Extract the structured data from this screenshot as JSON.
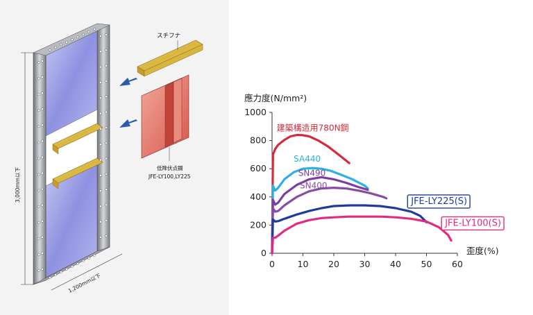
{
  "illustration": {
    "stiffener_label": "スチフナ",
    "steel_label_line1": "低降伏点鋼",
    "steel_label_line2": "JFE-LY100,LY225",
    "height_dim": "3,000mm以下",
    "width_dim": "1,200mm以下",
    "colors": {
      "panel": "#8c8fe0",
      "frame": "#8a8f94",
      "stiffener": "#e2c24a",
      "core": "#e06a5c",
      "arrow": "#2a5caa"
    }
  },
  "chart_data": {
    "type": "line",
    "ylabel": "應力度(N/mm²)",
    "xlabel": "歪度(%)",
    "xlim": [
      0,
      60
    ],
    "ylim": [
      0,
      1000
    ],
    "xticks": [
      0,
      10,
      20,
      30,
      40,
      50,
      60
    ],
    "yticks": [
      0,
      200,
      400,
      600,
      800,
      1000
    ],
    "grid": false,
    "series": [
      {
        "name": "建築構造用780N鋼",
        "color": "#d42a3a",
        "x": [
          0,
          0.3,
          1,
          2,
          4,
          6,
          8,
          10,
          12,
          15,
          18,
          21,
          25
        ],
        "y": [
          0,
          700,
          740,
          770,
          805,
          830,
          840,
          838,
          830,
          800,
          760,
          710,
          640
        ]
      },
      {
        "name": "SA440",
        "color": "#2ab0e4",
        "x": [
          0,
          0.3,
          1,
          2,
          4,
          7,
          10,
          13,
          16,
          19,
          22,
          26,
          30,
          31
        ],
        "y": [
          0,
          480,
          445,
          465,
          525,
          575,
          600,
          605,
          600,
          585,
          560,
          525,
          480,
          460
        ]
      },
      {
        "name": "SN490",
        "color": "#7a3e9e",
        "x": [
          0,
          0.3,
          1,
          2,
          4,
          8,
          12,
          16,
          20,
          24,
          28,
          31
        ],
        "y": [
          0,
          380,
          345,
          360,
          420,
          485,
          525,
          540,
          525,
          500,
          470,
          450
        ]
      },
      {
        "name": "SN400",
        "color": "#8a4aa8",
        "x": [
          0,
          0.3,
          1,
          2,
          4,
          8,
          12,
          16,
          20,
          24,
          28,
          32,
          36,
          37
        ],
        "y": [
          0,
          320,
          295,
          300,
          340,
          400,
          440,
          460,
          465,
          460,
          445,
          425,
          400,
          390
        ]
      },
      {
        "name": "JFE-LY225(S)",
        "color": "#1f3c9a",
        "x": [
          0,
          0.3,
          1,
          2,
          4,
          8,
          12,
          16,
          20,
          25,
          30,
          35,
          40,
          45,
          48,
          50
        ],
        "y": [
          0,
          240,
          225,
          228,
          245,
          275,
          300,
          320,
          335,
          340,
          340,
          335,
          320,
          295,
          265,
          220
        ]
      },
      {
        "name": "JFE-LY100(S)",
        "color": "#e42a7e",
        "x": [
          0,
          0.3,
          1,
          2,
          4,
          8,
          12,
          16,
          20,
          25,
          30,
          35,
          40,
          45,
          50,
          54,
          57,
          58
        ],
        "y": [
          0,
          110,
          110,
          125,
          160,
          210,
          235,
          250,
          255,
          260,
          260,
          260,
          255,
          245,
          225,
          185,
          130,
          90
        ]
      }
    ],
    "labels": [
      {
        "text": "建築構造用780N鋼",
        "color": "#d42a3a",
        "boxed": false,
        "x": 1.5,
        "y": 870
      },
      {
        "text": "SA440",
        "color": "#2ab0e4",
        "boxed": false,
        "x": 7,
        "y": 650
      },
      {
        "text": "SN490",
        "color": "#7a3e9e",
        "boxed": false,
        "x": 8.5,
        "y": 550
      },
      {
        "text": "SN400",
        "color": "#8a4aa8",
        "boxed": false,
        "x": 9,
        "y": 460
      },
      {
        "text": "JFE-LY225(S)",
        "color": "#1f3c9a",
        "boxed": true,
        "x": 45,
        "y": 350
      },
      {
        "text": "JFE-LY100(S)",
        "color": "#e42a7e",
        "boxed": true,
        "x": 56,
        "y": 195
      }
    ]
  }
}
